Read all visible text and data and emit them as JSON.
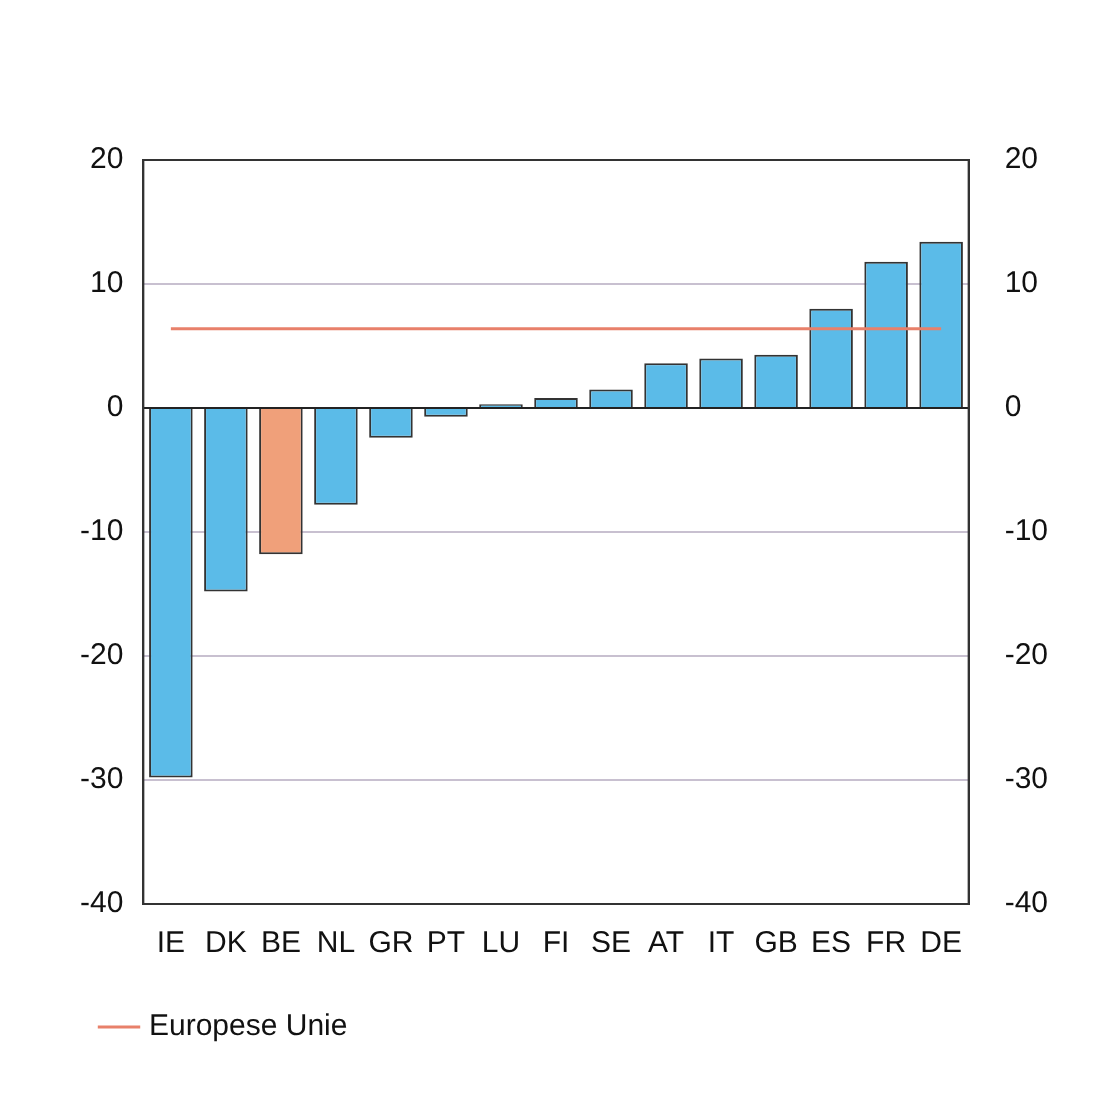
{
  "chart_data": {
    "type": "bar",
    "categories": [
      "IE",
      "DK",
      "BE",
      "NL",
      "GR",
      "PT",
      "LU",
      "FI",
      "SE",
      "AT",
      "IT",
      "GB",
      "ES",
      "FR",
      "DE"
    ],
    "series": [
      {
        "colors": [
          "#5bbbe8",
          "#5bbbe8",
          "#f0a07a",
          "#5bbbe8",
          "#5bbbe8",
          "#5bbbe8",
          "#5bbbe8",
          "#5bbbe8",
          "#5bbbe8",
          "#5bbbe8",
          "#5bbbe8",
          "#5bbbe8",
          "#5bbbe8",
          "#5bbbe8",
          "#5bbbe8"
        ],
        "values": [
          -29.8,
          -14.8,
          -11.8,
          -7.8,
          -2.4,
          -0.7,
          0.3,
          0.8,
          1.5,
          3.6,
          4.0,
          4.3,
          8.0,
          11.8,
          13.4
        ]
      },
      {
        "type": "line",
        "name": "Europese Unie",
        "color": "#e8806a",
        "values": [
          6.4,
          6.4,
          6.4,
          6.4,
          6.4,
          6.4,
          6.4,
          6.4,
          6.4,
          6.4,
          6.4,
          6.4,
          6.4,
          6.4,
          6.4
        ]
      }
    ],
    "ylim": [
      -40,
      20
    ],
    "yticks": [
      -40,
      -30,
      -20,
      -10,
      0,
      10,
      20
    ],
    "y2lim": [
      -40,
      20
    ],
    "y2ticks": [
      -40,
      -30,
      -20,
      -10,
      0,
      10,
      20
    ],
    "grid": "y",
    "legend": "bottom left",
    "marker": "none"
  }
}
